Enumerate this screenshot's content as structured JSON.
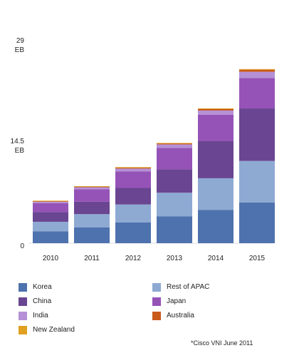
{
  "chart_data": {
    "type": "bar",
    "stacked": true,
    "categories": [
      "2010",
      "2011",
      "2012",
      "2013",
      "2014",
      "2015"
    ],
    "y_ticks": [
      {
        "value": 0,
        "label": "0"
      },
      {
        "value": 14.5,
        "label": "14.5\nEB"
      },
      {
        "value": 29,
        "label": "29\nEB"
      }
    ],
    "ylim": [
      0,
      29
    ],
    "series": [
      {
        "name": "Korea",
        "color": "#4e72ad",
        "values": [
          1.7,
          2.3,
          3.0,
          3.9,
          4.8,
          5.9
        ]
      },
      {
        "name": "Rest of APAC",
        "color": "#8eaad3",
        "values": [
          1.4,
          1.9,
          2.6,
          3.4,
          4.6,
          6.0
        ]
      },
      {
        "name": "China",
        "color": "#6a4591",
        "values": [
          1.4,
          1.8,
          2.4,
          3.4,
          5.4,
          7.6
        ]
      },
      {
        "name": "Japan",
        "color": "#9553b7",
        "values": [
          1.3,
          1.8,
          2.4,
          3.1,
          3.8,
          4.4
        ]
      },
      {
        "name": "India",
        "color": "#b590d6",
        "values": [
          0.2,
          0.3,
          0.4,
          0.5,
          0.6,
          0.9
        ]
      },
      {
        "name": "Australia",
        "color": "#c85a1c",
        "values": [
          0.1,
          0.1,
          0.15,
          0.15,
          0.25,
          0.3
        ]
      },
      {
        "name": "New Zealand",
        "color": "#e0a020",
        "values": [
          0.05,
          0.05,
          0.05,
          0.05,
          0.05,
          0.1
        ]
      }
    ],
    "legend_order": [
      "Korea",
      "Rest of APAC",
      "China",
      "Japan",
      "India",
      "Australia",
      "New Zealand"
    ],
    "legend_position": "bottom",
    "grid": false
  },
  "footnote": "*Cisco VNI June 2011"
}
